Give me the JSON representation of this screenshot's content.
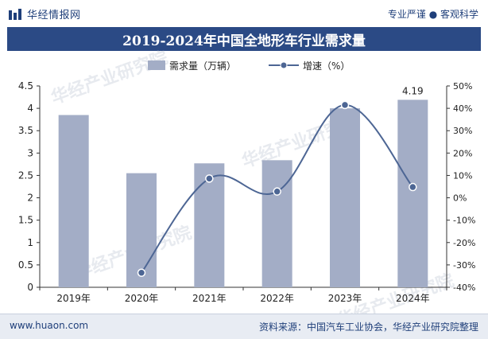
{
  "header": {
    "brand": "华经情报网",
    "tagline": "专业严谨 ● 客观科学"
  },
  "colors": {
    "title_bg": "#2b4a85",
    "bar": "#a3adc6",
    "line": "#4d6694",
    "brand": "#1f3f7a"
  },
  "chart_data": {
    "type": "bar+line",
    "title": "2019-2024年中国全地形车行业需求量",
    "categories": [
      "2019年",
      "2020年",
      "2021年",
      "2022年",
      "2023年",
      "2024年"
    ],
    "series": [
      {
        "name": "需求量（万辆）",
        "type": "bar",
        "axis": "left",
        "values": [
          3.85,
          2.55,
          2.77,
          2.84,
          4.0,
          4.19
        ]
      },
      {
        "name": "增速（%）",
        "type": "line",
        "axis": "right",
        "values": [
          null,
          -33.5,
          8.6,
          2.8,
          41.5,
          4.8
        ]
      }
    ],
    "data_labels": [
      {
        "series": 0,
        "index": 5,
        "text": "4.19"
      }
    ],
    "left_axis": {
      "ylim": [
        0,
        4.5
      ],
      "ticks": [
        "0",
        "0.5",
        "1",
        "1.5",
        "2",
        "2.5",
        "3",
        "3.5",
        "4",
        "4.5"
      ]
    },
    "right_axis": {
      "ylim": [
        -40,
        50
      ],
      "ticks": [
        "-40%",
        "-30%",
        "-20%",
        "-10%",
        "0%",
        "10%",
        "20%",
        "30%",
        "40%",
        "50%"
      ]
    },
    "legend": {
      "position": "top",
      "items": [
        "需求量（万辆）",
        "增速（%）"
      ]
    },
    "grid": false
  },
  "footer": {
    "website": "www.huaon.com",
    "source": "资料来源：中国汽车工业协会，华经产业研究院整理"
  },
  "watermarks": [
    "华经产业研究院",
    "www.huaon.com"
  ]
}
